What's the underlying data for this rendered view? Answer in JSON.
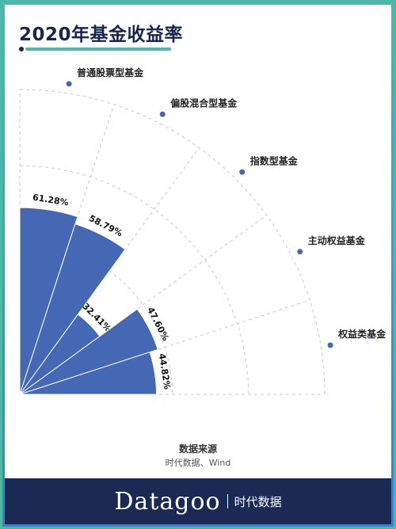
{
  "title": "2020年基金收益率",
  "source": {
    "title": "数据来源",
    "text": "时代数据、Wind"
  },
  "footer": {
    "brand": "Datagoo",
    "brand_cn": "时代数据"
  },
  "colors": {
    "bar": "#4468b4",
    "dot": "#4468b4",
    "grid": "#c8c8c8",
    "accent": "#4db8a8",
    "navy": "#1b2a55"
  },
  "chart_data": {
    "type": "polar-bar",
    "categories": [
      "普通股票型基金",
      "偏股混合型基金",
      "指数型基金",
      "主动权益基金",
      "权益类基金"
    ],
    "values": [
      61.28,
      58.79,
      32.41,
      47.6,
      44.82
    ],
    "value_labels": [
      "61.28%",
      "58.79%",
      "32.41%",
      "47.60%",
      "44.82%"
    ],
    "rlim": [
      0,
      100
    ]
  }
}
